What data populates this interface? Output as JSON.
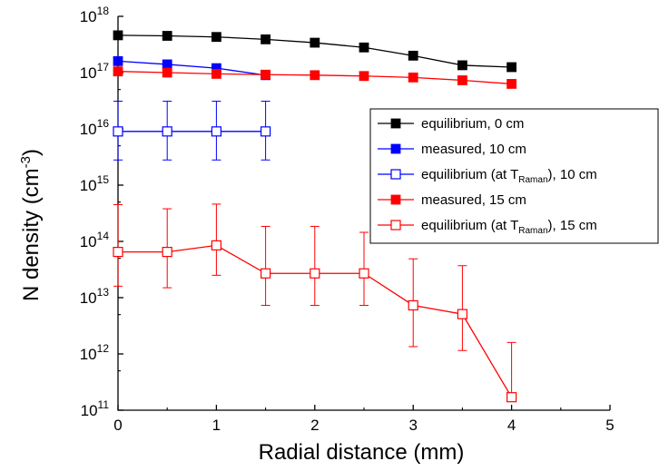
{
  "chart_data": {
    "type": "line",
    "xlabel": "Radial distance (mm)",
    "ylabel": {
      "base": "N density (cm",
      "sup": "-3",
      "tail": ")"
    },
    "xlim": [
      0,
      5
    ],
    "ylim_log10": [
      11,
      18
    ],
    "y_scale": "log",
    "x_ticks": [
      "0",
      "1",
      "2",
      "3",
      "4",
      "5"
    ],
    "y_ticks": [
      {
        "base": "10",
        "exp": "11"
      },
      {
        "base": "10",
        "exp": "12"
      },
      {
        "base": "10",
        "exp": "13"
      },
      {
        "base": "10",
        "exp": "14"
      },
      {
        "base": "10",
        "exp": "15"
      },
      {
        "base": "10",
        "exp": "16"
      },
      {
        "base": "10",
        "exp": "17"
      },
      {
        "base": "10",
        "exp": "18"
      }
    ],
    "legend_position": "right",
    "series": [
      {
        "name": "equilibrium, 0 cm",
        "color": "#000000",
        "marker": "filled-square",
        "x": [
          0,
          0.5,
          1,
          1.5,
          2,
          2.5,
          3,
          3.5,
          4
        ],
        "y": [
          4.6e+17,
          4.5e+17,
          4.3e+17,
          3.9e+17,
          3.4e+17,
          2.8e+17,
          2e+17,
          1.35e+17,
          1.25e+17
        ]
      },
      {
        "name": "measured, 10 cm",
        "color": "#0000ff",
        "marker": "filled-square",
        "x": [
          0,
          0.5,
          1,
          1.5
        ],
        "y": [
          1.6e+17,
          1.4e+17,
          1.2e+17,
          9e+16
        ]
      },
      {
        "name": "equilibrium (at T_Raman), 10 cm",
        "legend": {
          "pre": "equilibrium (at T",
          "sub": "Raman",
          "post": "), 10 cm"
        },
        "color": "#0000ff",
        "marker": "open-square",
        "x": [
          0,
          0.5,
          1,
          1.5
        ],
        "y": [
          9000000000000000.0,
          9000000000000000.0,
          9000000000000000.0,
          9000000000000000.0
        ],
        "err_low": [
          2800000000000000.0,
          2800000000000000.0,
          2800000000000000.0,
          2800000000000000.0
        ],
        "err_high": [
          3.1e+16,
          3.1e+16,
          3.1e+16,
          3.1e+16
        ]
      },
      {
        "name": "measured, 15 cm",
        "color": "#ff0000",
        "marker": "filled-square",
        "x": [
          0,
          0.5,
          1,
          1.5,
          2,
          2.5,
          3,
          3.5,
          4
        ],
        "y": [
          1.05e+17,
          1e+17,
          9.5e+16,
          9.2e+16,
          9e+16,
          8.7e+16,
          8.2e+16,
          7.3e+16,
          6.3e+16
        ]
      },
      {
        "name": "equilibrium (at T_Raman), 15 cm",
        "legend": {
          "pre": "equilibrium (at T",
          "sub": "Raman",
          "post": "), 15 cm"
        },
        "color": "#ff0000",
        "marker": "open-square",
        "x": [
          0,
          0.5,
          1,
          1.5,
          2,
          2.5,
          3,
          3.5,
          4
        ],
        "y": [
          65000000000000.0,
          65000000000000.0,
          85000000000000.0,
          27000000000000.0,
          27000000000000.0,
          27000000000000.0,
          7300000000000.0,
          5100000000000.0,
          170000000000.0
        ],
        "err_low": [
          16000000000000.0,
          15000000000000.0,
          25000000000000.0,
          7300000000000.0,
          7300000000000.0,
          7300000000000.0,
          1350000000000.0,
          1150000000000.0,
          null
        ],
        "err_high": [
          450000000000000.0,
          380000000000000.0,
          460000000000000.0,
          185000000000000.0,
          185000000000000.0,
          145000000000000.0,
          49000000000000.0,
          37000000000000.0,
          1600000000000.0
        ]
      }
    ]
  }
}
